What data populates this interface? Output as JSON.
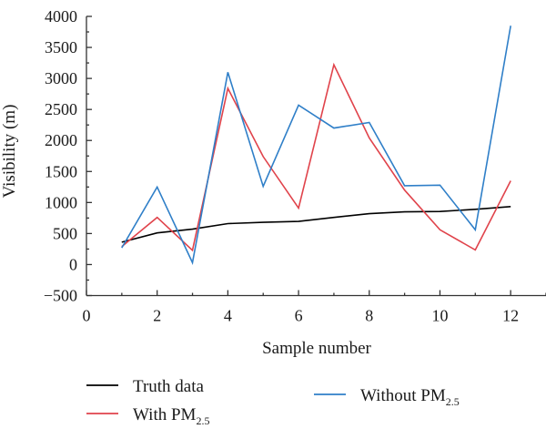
{
  "chart_data": {
    "type": "line",
    "xlabel": "Sample number",
    "ylabel": "Visibility (m)",
    "xlim": [
      0,
      13
    ],
    "ylim": [
      -500,
      4000
    ],
    "xticks": [
      0,
      2,
      4,
      6,
      8,
      10,
      12
    ],
    "yticks": [
      -500,
      0,
      500,
      1000,
      1500,
      2000,
      2500,
      3000,
      3500,
      4000
    ],
    "xtick_labels": [
      "0",
      "2",
      "4",
      "6",
      "8",
      "10",
      "12"
    ],
    "ytick_labels": [
      "−500",
      "0",
      "500",
      "1000",
      "1500",
      "2000",
      "2500",
      "3000",
      "3500",
      "4000"
    ],
    "grid": false,
    "legend_position": "bottom",
    "x": [
      1,
      2,
      3,
      4,
      5,
      6,
      7,
      8,
      9,
      10,
      11,
      12
    ],
    "series": [
      {
        "name": "Truth data",
        "name_main": "Truth data",
        "name_sub": "",
        "color": "#000000",
        "values": [
          360,
          510,
          570,
          660,
          680,
          695,
          760,
          820,
          850,
          855,
          890,
          935
        ]
      },
      {
        "name": "With PM2.5",
        "name_main": "With PM",
        "name_sub": "2.5",
        "color": "#e0434b",
        "values": [
          290,
          760,
          230,
          2840,
          1740,
          910,
          3220,
          2040,
          1200,
          560,
          235,
          1350
        ]
      },
      {
        "name": "Without PM2.5",
        "name_main": "Without PM",
        "name_sub": "2.5",
        "color": "#2f7fc8",
        "values": [
          270,
          1250,
          30,
          3100,
          1260,
          2570,
          2200,
          2290,
          1270,
          1280,
          560,
          3850
        ]
      }
    ]
  }
}
